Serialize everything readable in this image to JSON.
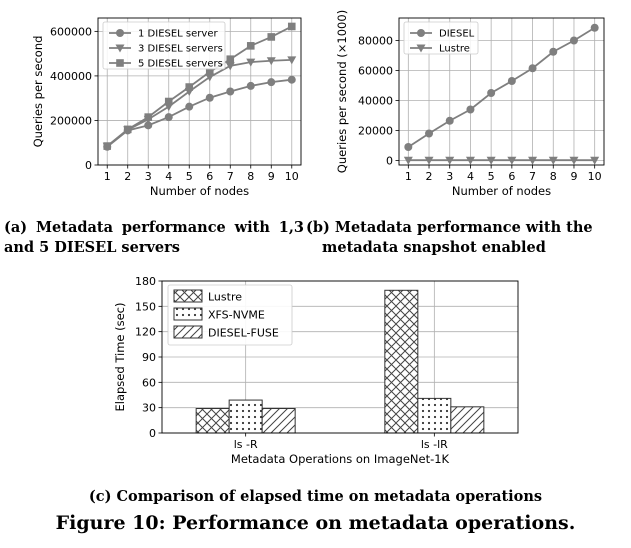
{
  "captions": {
    "a": "(a) Metadata performance with 1,3 and 5 DIESEL servers",
    "b_line1": "(b) Metadata performance with the",
    "b_line2": "metadata snapshot enabled",
    "c": "(c) Comparison of elapsed time on metadata operations",
    "figure": "Figure 10: Performance on metadata operations."
  },
  "chart_data": [
    {
      "type": "line",
      "xlabel": "Number of nodes",
      "ylabel": "Queries per second",
      "x": [
        1,
        2,
        3,
        4,
        5,
        6,
        7,
        8,
        9,
        10
      ],
      "xticks": [
        "1",
        "2",
        "3",
        "4",
        "5",
        "6",
        "7",
        "8",
        "9",
        "10"
      ],
      "ylim": [
        0,
        660000
      ],
      "yticks": [
        0,
        200000,
        400000,
        600000
      ],
      "ytick_labels": [
        "0",
        "200000",
        "400000",
        "600000"
      ],
      "grid": true,
      "legend": "top-left",
      "series": [
        {
          "name": "1 DIESEL server",
          "marker": "circle",
          "values": [
            82000,
            155000,
            178000,
            215000,
            262000,
            302000,
            330000,
            355000,
            372000,
            383000
          ]
        },
        {
          "name": "3 DIESEL servers",
          "marker": "triangle-down",
          "values": [
            84000,
            158000,
            205000,
            262000,
            330000,
            395000,
            445000,
            462000,
            468000,
            472000
          ]
        },
        {
          "name": "5 DIESEL servers",
          "marker": "square",
          "values": [
            85000,
            160000,
            215000,
            285000,
            350000,
            418000,
            475000,
            535000,
            575000,
            622000
          ]
        }
      ]
    },
    {
      "type": "line",
      "xlabel": "Number of nodes",
      "ylabel": "Queries per second (×1000)",
      "x": [
        1,
        2,
        3,
        4,
        5,
        6,
        7,
        8,
        9,
        10
      ],
      "xticks": [
        "1",
        "2",
        "3",
        "4",
        "5",
        "6",
        "7",
        "8",
        "9",
        "10"
      ],
      "ylim": [
        -3000,
        95000
      ],
      "yticks": [
        0,
        20000,
        40000,
        60000,
        80000
      ],
      "ytick_labels": [
        "0",
        "20000",
        "40000",
        "60000",
        "80000"
      ],
      "grid": true,
      "legend": "top-left",
      "series": [
        {
          "name": "DIESEL",
          "marker": "circle",
          "values": [
            9000,
            18000,
            26500,
            34000,
            45000,
            53000,
            61500,
            72500,
            80000,
            88500
          ]
        },
        {
          "name": "Lustre",
          "marker": "triangle-down",
          "values": [
            200,
            200,
            200,
            200,
            200,
            200,
            200,
            200,
            200,
            200
          ]
        }
      ]
    },
    {
      "type": "bar",
      "xlabel": "Metadata Operations on ImageNet-1K",
      "ylabel": "Elapsed Time (sec)",
      "categories": [
        "ls -R",
        "ls -lR"
      ],
      "ylim": [
        0,
        180
      ],
      "yticks": [
        0,
        30,
        60,
        90,
        120,
        150,
        180
      ],
      "ytick_labels": [
        "0",
        "30",
        "60",
        "90",
        "120",
        "150",
        "180"
      ],
      "grid": true,
      "legend": "top-left",
      "series": [
        {
          "name": "Lustre",
          "pattern": "crosshatch",
          "values": [
            29,
            169
          ]
        },
        {
          "name": "XFS-NVME",
          "pattern": "dots",
          "values": [
            39,
            41
          ]
        },
        {
          "name": "DIESEL-FUSE",
          "pattern": "diagonal",
          "values": [
            29,
            31
          ]
        }
      ]
    }
  ]
}
